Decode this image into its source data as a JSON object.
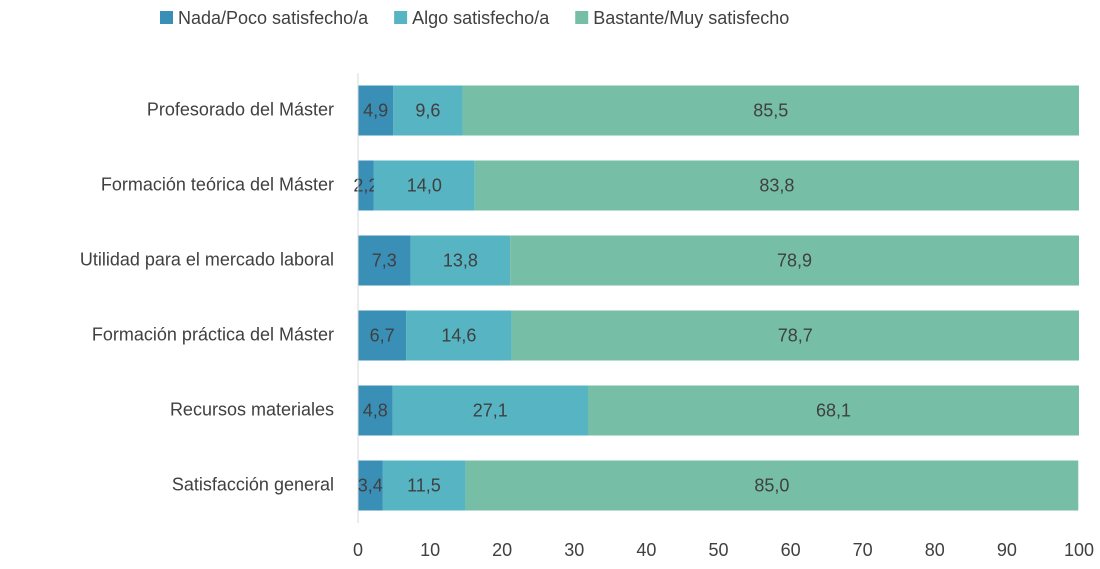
{
  "chart_data": {
    "type": "stacked_barh",
    "categories": [
      "Profesorado del Máster",
      "Formación teórica del Máster",
      "Utilidad para el mercado laboral",
      "Formación práctica del Máster",
      "Recursos materiales",
      "Satisfacción general"
    ],
    "series": [
      {
        "name": "Nada/Poco satisfecho/a",
        "color": "#3a8fb7",
        "values": [
          4.9,
          2.2,
          7.3,
          6.7,
          4.8,
          3.4
        ],
        "value_labels": [
          "4,9",
          "2,2",
          "7,3",
          "6,7",
          "4,8",
          "3,4"
        ]
      },
      {
        "name": "Algo satisfecho/a",
        "color": "#56b4c3",
        "values": [
          9.6,
          14.0,
          13.8,
          14.6,
          27.1,
          11.5
        ],
        "value_labels": [
          "9,6",
          "14,0",
          "13,8",
          "14,6",
          "27,1",
          "11,5"
        ]
      },
      {
        "name": "Bastante/Muy satisfecho",
        "color": "#76bfa6",
        "values": [
          85.5,
          83.8,
          78.9,
          78.7,
          68.1,
          85.0
        ],
        "value_labels": [
          "85,5",
          "83,8",
          "78,9",
          "78,7",
          "68,1",
          "85,0"
        ]
      }
    ],
    "xlim": [
      0,
      100
    ],
    "xticks": [
      0,
      10,
      20,
      30,
      40,
      50,
      60,
      70,
      80,
      90,
      100
    ],
    "legend": "top"
  }
}
